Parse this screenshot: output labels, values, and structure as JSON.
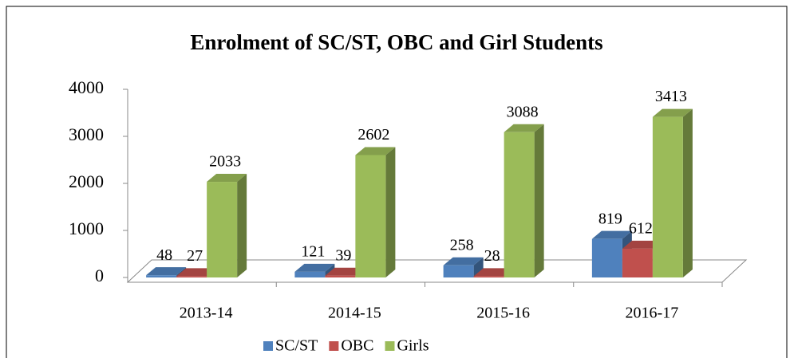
{
  "chart_data": {
    "type": "bar3d",
    "title": "Enrolment of SC/ST, OBC and Girl Students",
    "categories": [
      "2013-14",
      "2014-15",
      "2015-16",
      "2016-17"
    ],
    "series": [
      {
        "name": "SC/ST",
        "color": "#4f81bd",
        "values": [
          48,
          121,
          258,
          819
        ]
      },
      {
        "name": "OBC",
        "color": "#c0504d",
        "values": [
          27,
          39,
          28,
          612
        ]
      },
      {
        "name": "Girls",
        "color": "#9bbb59",
        "values": [
          2033,
          2602,
          3088,
          3413
        ]
      }
    ],
    "ylim": [
      0,
      4000
    ],
    "yticks": [
      0,
      1000,
      2000,
      3000,
      4000
    ],
    "legend": "bottom"
  }
}
